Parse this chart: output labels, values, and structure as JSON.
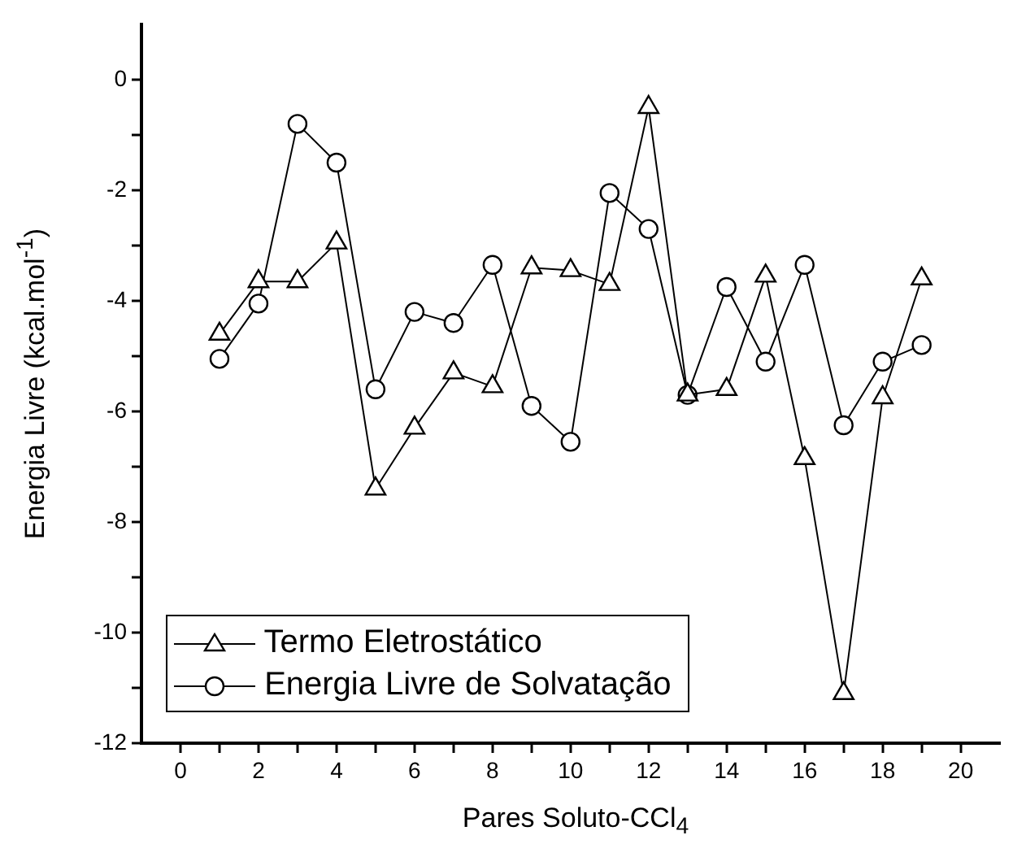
{
  "chart_data": {
    "type": "line",
    "xlabel": "Pares Soluto-CCl$_{4}$",
    "ylabel": "Energia Livre (kcal.mol$^{-1}$)",
    "x": [
      1,
      2,
      3,
      4,
      5,
      6,
      7,
      8,
      9,
      10,
      11,
      12,
      13,
      14,
      15,
      16,
      17,
      18,
      19
    ],
    "series": [
      {
        "name": "Termo Eletrostático",
        "color": "#000000",
        "marker": "triangle",
        "values": [
          -4.6,
          -3.65,
          -3.65,
          -2.95,
          -7.4,
          -6.3,
          -5.3,
          -5.55,
          -3.4,
          -3.45,
          -3.7,
          -0.5,
          -5.7,
          -5.6,
          -3.55,
          -6.85,
          -11.1,
          -5.75,
          -3.6
        ]
      },
      {
        "name": "Energia Livre de Solvatação",
        "color": "#000000",
        "marker": "circle",
        "values": [
          -5.05,
          -4.05,
          -0.8,
          -1.5,
          -5.6,
          -4.2,
          -4.4,
          -3.35,
          -5.9,
          -6.55,
          -2.05,
          -2.7,
          -5.7,
          -3.75,
          -5.1,
          -3.35,
          -6.25,
          -5.1,
          -4.8
        ]
      }
    ],
    "xlim": [
      -1,
      21
    ],
    "ylim": [
      -12,
      1
    ],
    "xticks": [
      0,
      {
        "value": 1,
        "label": null
      },
      2,
      {
        "value": 3,
        "label": null
      },
      4,
      {
        "value": 5,
        "label": null
      },
      6,
      {
        "value": 7,
        "label": null
      },
      8,
      {
        "value": 9,
        "label": null
      },
      10,
      {
        "value": 11,
        "label": null
      },
      12,
      {
        "value": 13,
        "label": null
      },
      14,
      {
        "value": 15,
        "label": null
      },
      16,
      {
        "value": 17,
        "label": null
      },
      18,
      {
        "value": 19,
        "label": null
      },
      20
    ],
    "yticks": [
      -12,
      {
        "value": -11,
        "label": null
      },
      -10,
      {
        "value": -9,
        "label": null
      },
      -8,
      {
        "value": -7,
        "label": null
      },
      -6,
      {
        "value": -5,
        "label": null
      },
      -4,
      {
        "value": -3,
        "label": null
      },
      -2,
      {
        "value": -1,
        "label": null
      },
      0
    ],
    "grid": false,
    "legend": "bottom left",
    "line_style": "solid"
  }
}
